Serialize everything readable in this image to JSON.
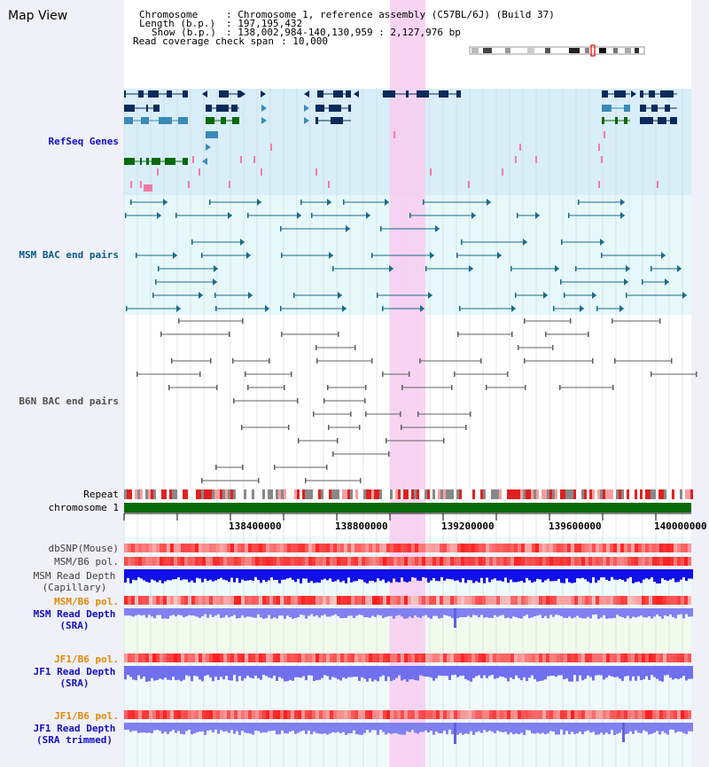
{
  "title": "Map View",
  "info": {
    "chromosome_key": "Chromosome",
    "chromosome_val": ": Chromosome 1, reference assembly (C57BL/6J) (Build 37)",
    "length_key": "Length (b.p.)",
    "length_val": ": 197,195,432",
    "show_key": "Show (b.p.)",
    "show_val": ": 138,002,984-140,130,959 : 2,127,976 bp",
    "span_key": "Read coverage check span",
    "span_val": ": 10,000"
  },
  "tracks": {
    "refseq": "RefSeq Genes",
    "msm_bac": "MSM BAC end pairs",
    "b6n_bac": "B6N BAC end pairs",
    "repeat": "Repeat",
    "chromosome": "chromosome 1",
    "dbsnp": "dbSNP(Mouse)",
    "msm_pol": "MSM/B6 pol.",
    "msm_depth_cap_1": "MSM Read Depth",
    "msm_depth_cap_2": "(Capillary)",
    "msm_pol2": "MSM/B6 pol.",
    "msm_depth_sra_1": "MSM Read Depth",
    "msm_depth_sra_2": "(SRA)",
    "jf1_pol": "JF1/B6 pol.",
    "jf1_depth_sra_1": "JF1 Read Depth",
    "jf1_depth_sra_2": "(SRA)",
    "jf1_pol2": "JF1/B6 pol.",
    "jf1_depth_trim_1": "JF1 Read Depth",
    "jf1_depth_trim_2": "(SRA trimmed)"
  },
  "axis_ticks": [
    "138400000",
    "138800000",
    "139200000",
    "139600000",
    "140000000"
  ],
  "colors": {
    "refseq_dark": "#0a2a5a",
    "refseq_mid": "#3a8ab8",
    "refseq_green": "#0a6a0a",
    "msm_bac": "#1a6a8a",
    "b6n_bac": "#606060",
    "highlight": "#f8cdf0",
    "label_blue": "#1010c0",
    "label_teal": "#0a5a8a",
    "label_orange": "#e08a00",
    "label_gray": "#404040"
  }
}
